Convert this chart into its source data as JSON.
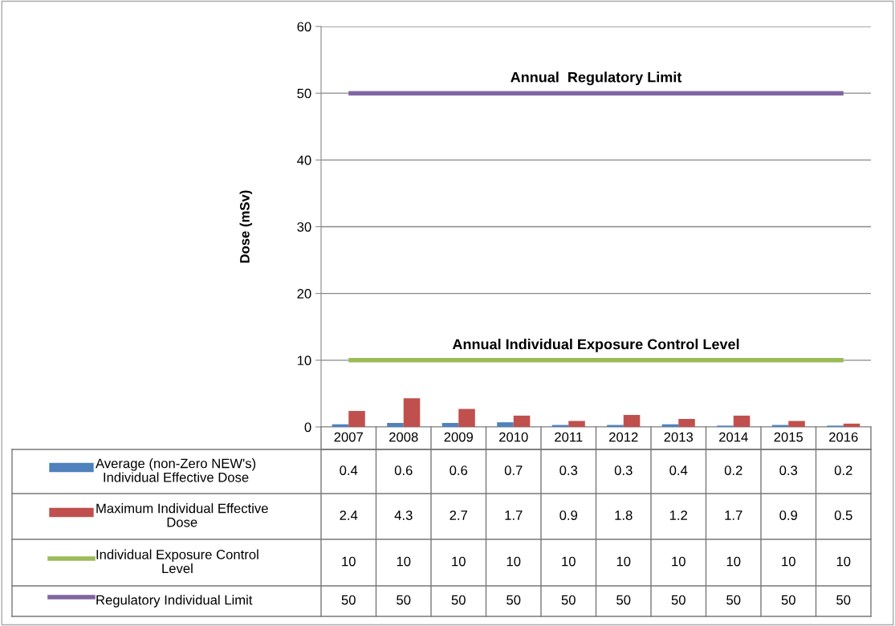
{
  "chart_data": {
    "type": "bar",
    "ylabel": "Dose (mSv)",
    "categories": [
      "2007",
      "2008",
      "2009",
      "2010",
      "2011",
      "2012",
      "2013",
      "2014",
      "2015",
      "2016"
    ],
    "series": [
      {
        "name": "Average (non-Zero NEW's) Individual Effective Dose",
        "color": "#4f81bd",
        "values": [
          0.4,
          0.6,
          0.6,
          0.7,
          0.3,
          0.3,
          0.4,
          0.2,
          0.3,
          0.2
        ]
      },
      {
        "name": "Maximum Individual Effective Dose",
        "color": "#c0504d",
        "values": [
          2.4,
          4.3,
          2.7,
          1.7,
          0.9,
          1.8,
          1.2,
          1.7,
          0.9,
          0.5
        ]
      },
      {
        "name": "Individual Exposure Control Level",
        "type": "line",
        "color": "#9bbb59",
        "values": [
          10,
          10,
          10,
          10,
          10,
          10,
          10,
          10,
          10,
          10
        ]
      },
      {
        "name": "Regulatory Individual Limit",
        "type": "line",
        "color": "#8064a2",
        "values": [
          50,
          50,
          50,
          50,
          50,
          50,
          50,
          50,
          50,
          50
        ]
      }
    ],
    "annotations": [
      {
        "text": "Annual  Regulatory Limit",
        "y": 50
      },
      {
        "text": "Annual Individual Exposure Control Level",
        "y": 10
      }
    ],
    "ylim": [
      0,
      60
    ],
    "yticks": [
      0,
      10,
      20,
      30,
      40,
      50,
      60
    ],
    "grid": "y",
    "legend": "bottom",
    "data_labels": true
  }
}
